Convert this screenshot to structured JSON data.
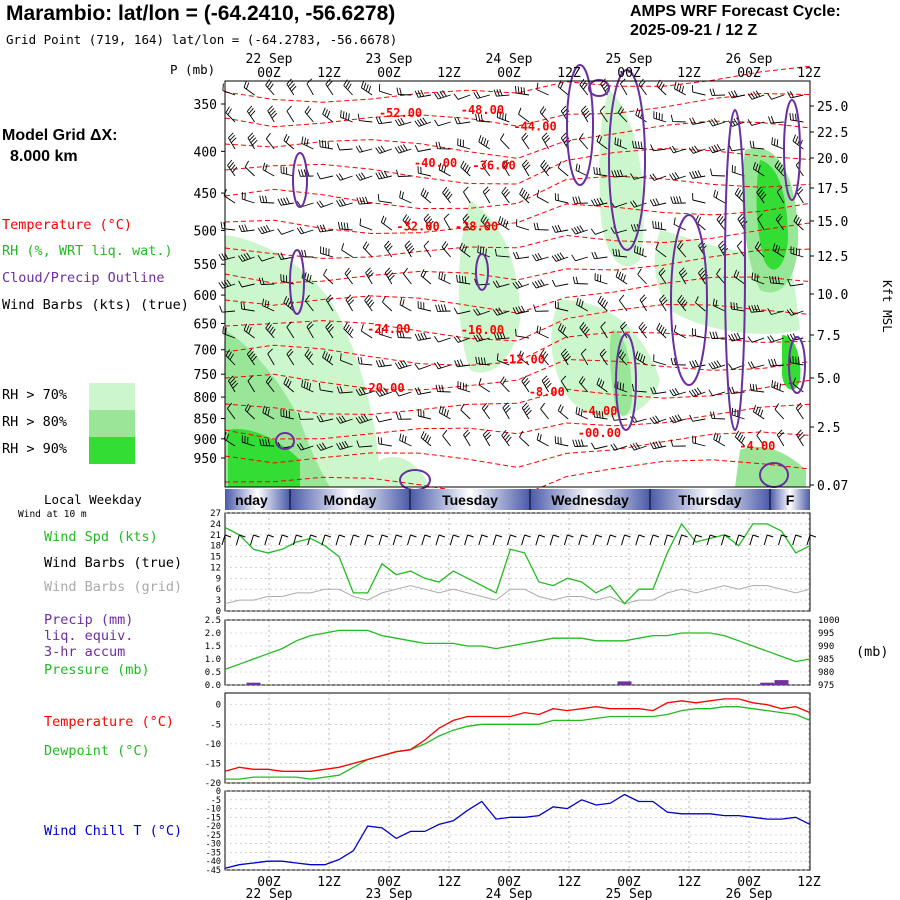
{
  "header": {
    "title": "Marambio:  lat/lon = (-64.2410, -56.6278)",
    "grid_point": "Grid Point (719, 164) lat/lon = (-64.2783, -56.6678)",
    "forecast_title": "AMPS WRF Forecast Cycle:",
    "forecast_cycle": "2025-09-21 / 12  Z"
  },
  "model_grid": {
    "label": "Model Grid ΔX:",
    "value": "8.000 km"
  },
  "legend": {
    "temperature": "Temperature (°C)",
    "rh": "RH (%, WRT liq. wat.)",
    "cloud": "Cloud/Precip Outline",
    "wind": "Wind Barbs (kts) (true)",
    "rh_levels": [
      "RH > 70%",
      "RH > 80%",
      "RH > 90%"
    ]
  },
  "colors": {
    "temperature": "#ff0000",
    "rh70": "#ccf6cc",
    "rh80": "#99e699",
    "rh90": "#33dd33",
    "cloud": "#6a2ea0",
    "wind_spd": "#22bb22",
    "wind_barb_grid": "#aaaaaa",
    "precip": "#7030a0",
    "pressure": "#22bb22",
    "dewpoint": "#22bb22",
    "wind_chill": "#0000cc"
  },
  "time_axis": {
    "top_dates": [
      "22 Sep",
      "23 Sep",
      "24 Sep",
      "25 Sep",
      "26 Sep"
    ],
    "hours": [
      "00Z",
      "12Z",
      "00Z",
      "12Z",
      "00Z",
      "12Z",
      "00Z",
      "12Z",
      "00Z",
      "12Z"
    ],
    "bottom_dates": [
      "22 Sep",
      "23 Sep",
      "24 Sep",
      "25 Sep",
      "26 Sep"
    ]
  },
  "weekday": {
    "label": "Local Weekday",
    "days": [
      "nday",
      "Monday",
      "Tuesday",
      "Wednesday",
      "Thursday",
      "F"
    ]
  },
  "panel1": {
    "note": "Wind at 10 m",
    "labels": [
      "Wind Spd (kts)",
      "Wind Barbs (true)",
      "Wind Barbs (grid)"
    ]
  },
  "panel2": {
    "labels": [
      "Precip (mm)",
      "liq. equiv.",
      "3-hr accum",
      "Pressure (mb)"
    ],
    "right_unit": "(mb)"
  },
  "panel3": {
    "labels": [
      "Temperature (°C)",
      "Dewpoint (°C)"
    ]
  },
  "panel4": {
    "labels": [
      "Wind Chill T (°C)"
    ]
  },
  "chart_data": [
    {
      "type": "heatmap",
      "name": "cross-section",
      "y_axis_left": {
        "label": "P (mb)",
        "ticks": [
          350,
          400,
          450,
          500,
          550,
          600,
          650,
          700,
          750,
          800,
          850,
          900,
          950
        ]
      },
      "y_axis_right": {
        "label": "Kft MSL",
        "ticks": [
          "25.0",
          "22.5",
          "20.0",
          "17.5",
          "15.0",
          "12.5",
          "10.0",
          "7.5",
          "5.0",
          "2.5",
          "0.07"
        ]
      },
      "temperature_labels": [
        {
          "text": "-52.00",
          "t": 0.3,
          "p": 358
        },
        {
          "text": "-48.00",
          "t": 0.44,
          "p": 355
        },
        {
          "text": "-44.00",
          "t": 0.53,
          "p": 372
        },
        {
          "text": "-40.00",
          "t": 0.36,
          "p": 412
        },
        {
          "text": "-36.00",
          "t": 0.46,
          "p": 415
        },
        {
          "text": "-32.00",
          "t": 0.33,
          "p": 493
        },
        {
          "text": "-28.00",
          "t": 0.43,
          "p": 493
        },
        {
          "text": "-24.00",
          "t": 0.28,
          "p": 658
        },
        {
          "text": "-16.00",
          "t": 0.44,
          "p": 660
        },
        {
          "text": "-12.00",
          "t": 0.51,
          "p": 718
        },
        {
          "text": "-20.00",
          "t": 0.27,
          "p": 778
        },
        {
          "text": "-8.00",
          "t": 0.55,
          "p": 786
        },
        {
          "text": "-4.00",
          "t": 0.64,
          "p": 830
        },
        {
          "text": "-00.00",
          "t": 0.64,
          "p": 883
        },
        {
          "text": "-4.00",
          "t": 0.91,
          "p": 916
        }
      ]
    },
    {
      "type": "line",
      "name": "wind-10m",
      "y_ticks": [
        0,
        3,
        6,
        9,
        12,
        15,
        18,
        21,
        24,
        27
      ],
      "ylim": [
        0,
        27
      ],
      "series": [
        {
          "name": "Wind Spd (kts)",
          "values": [
            23,
            21,
            17,
            16,
            17,
            19,
            20,
            18,
            15,
            5,
            5,
            13,
            10,
            11,
            9,
            8,
            11,
            9,
            7,
            5,
            17,
            16,
            8,
            7,
            9,
            8,
            5,
            7,
            2,
            6,
            6,
            16,
            24,
            19,
            20,
            21,
            18,
            24,
            24,
            22,
            16,
            18
          ]
        },
        {
          "name": "Wind Barbs (grid)",
          "values": [
            2,
            3,
            3,
            4,
            4,
            5,
            5,
            6,
            6,
            4,
            3,
            5,
            6,
            7,
            6,
            5,
            6,
            5,
            4,
            3,
            6,
            6,
            4,
            3,
            4,
            4,
            3,
            4,
            2,
            3,
            3,
            5,
            6,
            5,
            6,
            7,
            6,
            7,
            7,
            6,
            5,
            6
          ]
        }
      ]
    },
    {
      "type": "line",
      "name": "precip-pressure",
      "y_ticks_left": [
        "0.0",
        "0.5",
        "1.0",
        "1.5",
        "2.0",
        "2.5"
      ],
      "y_ticks_right": [
        "975",
        "980",
        "985",
        "990",
        "995",
        "1000"
      ],
      "ylim_left": [
        0,
        2.5
      ],
      "ylim_right": [
        975,
        1000
      ],
      "series": [
        {
          "name": "Pressure (mb)",
          "values": [
            981,
            983,
            985,
            987,
            989,
            992,
            994,
            995,
            996,
            996,
            996,
            994,
            993,
            992,
            991,
            991,
            991,
            990,
            990,
            989,
            990,
            991,
            992,
            993,
            993,
            993,
            992,
            992,
            992,
            993,
            994,
            994,
            995,
            995,
            995,
            994,
            992,
            990,
            988,
            986,
            984,
            985
          ]
        },
        {
          "name": "Precip (mm)",
          "values": [
            0,
            0,
            0.05,
            0,
            0,
            0,
            0,
            0,
            0,
            0,
            0,
            0,
            0,
            0,
            0,
            0,
            0,
            0,
            0,
            0,
            0,
            0,
            0,
            0,
            0,
            0,
            0,
            0,
            0.1,
            0,
            0,
            0,
            0,
            0,
            0,
            0,
            0,
            0,
            0.05,
            0.15,
            0,
            0
          ]
        }
      ]
    },
    {
      "type": "line",
      "name": "temp-dewpoint",
      "y_ticks": [
        0,
        -5,
        -10,
        -15,
        -20
      ],
      "ylim": [
        -20,
        3
      ],
      "series": [
        {
          "name": "Temperature (°C)",
          "values": [
            -17,
            -16,
            -16.5,
            -16.5,
            -17,
            -17,
            -17,
            -16.5,
            -16,
            -15,
            -14,
            -13,
            -12,
            -11.5,
            -9,
            -6,
            -4,
            -3,
            -3,
            -3,
            -3,
            -2,
            -2.5,
            -1,
            -1.5,
            -1,
            -0.5,
            -1,
            -1,
            -1,
            -1.5,
            0.5,
            1,
            0.5,
            1,
            1.5,
            1.5,
            0.5,
            0,
            -1,
            -0.5,
            -2
          ]
        },
        {
          "name": "Dewpoint (°C)",
          "values": [
            -19,
            -19,
            -18.5,
            -18.5,
            -18.5,
            -18.5,
            -19,
            -18.5,
            -18,
            -16,
            -14,
            -13,
            -12,
            -11.5,
            -10,
            -8,
            -6.5,
            -5.5,
            -5,
            -5,
            -5,
            -5,
            -5,
            -4,
            -4,
            -4,
            -3.5,
            -3,
            -3,
            -3,
            -3,
            -2.5,
            -1.5,
            -1,
            -1,
            -0.5,
            -0.5,
            -1,
            -1.5,
            -2,
            -2.5,
            -4
          ]
        }
      ]
    },
    {
      "type": "line",
      "name": "wind-chill",
      "y_ticks": [
        0,
        -5,
        -10,
        -15,
        -20,
        -25,
        -30,
        -35,
        -40,
        -45
      ],
      "ylim": [
        -45,
        0
      ],
      "series": [
        {
          "name": "Wind Chill T (°C)",
          "values": [
            -44,
            -42,
            -41,
            -40,
            -40,
            -41,
            -42,
            -42,
            -39,
            -34,
            -20,
            -21,
            -27,
            -23,
            -23,
            -19,
            -17,
            -11,
            -6,
            -16,
            -15,
            -15,
            -14,
            -9,
            -10,
            -5,
            -8,
            -7,
            -2,
            -6,
            -6,
            -12,
            -13,
            -13,
            -13,
            -14,
            -14,
            -15,
            -16,
            -16,
            -15,
            -19
          ]
        }
      ]
    }
  ]
}
